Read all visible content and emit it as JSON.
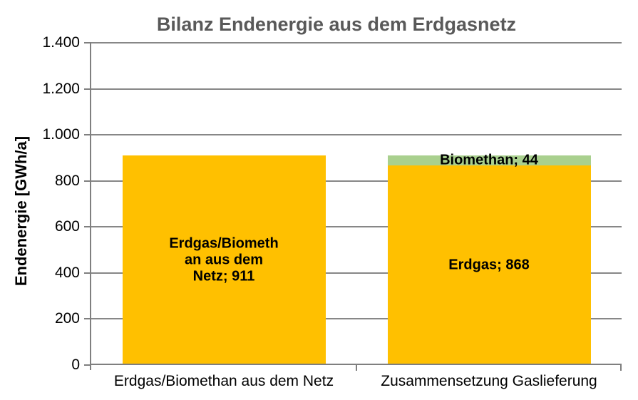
{
  "chart_data": {
    "type": "bar",
    "stacked": true,
    "title": "Bilanz Endenergie aus dem Erdgasnetz",
    "ylabel": "Endenergie [GWh/a]",
    "xlabel": "",
    "ylim": [
      0,
      1400
    ],
    "ytick_interval": 200,
    "ytick_labels": [
      "0",
      "200",
      "400",
      "600",
      "800",
      "1.000",
      "1.200",
      "1.400"
    ],
    "grid": true,
    "legend": "none",
    "categories": [
      "Erdgas/Biomethan aus dem Netz",
      "Zusammensetzung Gaslieferung"
    ],
    "bars": [
      {
        "category": "Erdgas/Biomethan aus dem Netz",
        "total": 911,
        "segments": [
          {
            "name": "Erdgas/Biomethan aus dem Netz",
            "value": 911,
            "color": "#FFC000",
            "label_lines": [
              "Erdgas/Biometh",
              "an aus dem",
              "Netz; 911"
            ]
          }
        ]
      },
      {
        "category": "Zusammensetzung Gaslieferung",
        "total": 912,
        "segments": [
          {
            "name": "Erdgas",
            "value": 868,
            "color": "#FFC000",
            "label_lines": [
              "Erdgas; 868"
            ]
          },
          {
            "name": "Biomethan",
            "value": 44,
            "color": "#A9D08E",
            "label_lines": [
              "Biomethan; 44"
            ]
          }
        ]
      }
    ],
    "colors": {
      "bar_yellow": "#FFC000",
      "bar_green": "#A9D08E",
      "title_text": "#595959",
      "axis_line": "#7F7F7F",
      "gridline": "#878787",
      "label_text": "#000000"
    }
  }
}
